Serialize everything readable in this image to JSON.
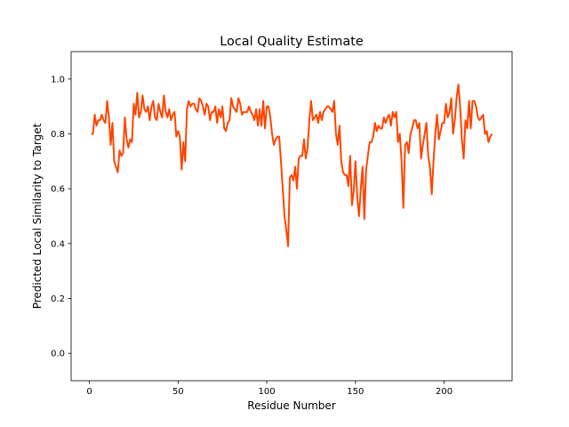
{
  "chart_data": {
    "type": "line",
    "title": "Local Quality Estimate",
    "x_label": "Residue Number",
    "y_label": "Predicted Local Similarity to Target",
    "color": "#ff4500",
    "x": [
      1,
      2,
      3,
      4,
      5,
      6,
      7,
      8,
      9,
      10,
      11,
      12,
      13,
      14,
      15,
      16,
      17,
      18,
      19,
      20,
      21,
      22,
      23,
      24,
      25,
      26,
      27,
      28,
      29,
      30,
      31,
      32,
      33,
      34,
      35,
      36,
      37,
      38,
      39,
      40,
      41,
      42,
      43,
      44,
      45,
      46,
      47,
      48,
      49,
      50,
      51,
      52,
      53,
      54,
      55,
      56,
      57,
      58,
      59,
      60,
      61,
      62,
      63,
      64,
      65,
      66,
      67,
      68,
      69,
      70,
      71,
      72,
      73,
      74,
      75,
      76,
      77,
      78,
      79,
      80,
      81,
      82,
      83,
      84,
      85,
      86,
      87,
      88,
      89,
      90,
      91,
      92,
      93,
      94,
      95,
      96,
      97,
      98,
      99,
      100,
      101,
      102,
      103,
      104,
      105,
      106,
      107,
      108,
      109,
      110,
      111,
      112,
      113,
      114,
      115,
      116,
      117,
      118,
      119,
      120,
      121,
      122,
      123,
      124,
      125,
      126,
      127,
      128,
      129,
      130,
      131,
      132,
      133,
      134,
      135,
      136,
      137,
      138,
      139,
      140,
      141,
      142,
      143,
      144,
      145,
      146,
      147,
      148,
      149,
      150,
      151,
      152,
      153,
      154,
      155,
      156,
      157,
      158,
      159,
      160,
      161,
      162,
      163,
      164,
      165,
      166,
      167,
      168,
      169,
      170,
      171,
      172,
      173,
      174,
      175,
      176,
      177,
      178,
      179,
      180,
      181,
      182,
      183,
      184,
      185,
      186,
      187,
      188,
      189,
      190,
      191,
      192,
      193,
      194,
      195,
      196,
      197,
      198,
      199,
      200,
      201,
      202,
      203,
      204,
      205,
      206,
      207,
      208,
      209,
      210,
      211,
      212,
      213,
      214,
      215,
      216,
      217,
      218,
      219,
      220,
      221,
      222,
      223,
      224,
      225,
      226,
      227
    ],
    "values": [
      0.8,
      0.8,
      0.87,
      0.83,
      0.85,
      0.85,
      0.87,
      0.85,
      0.84,
      0.92,
      0.86,
      0.76,
      0.84,
      0.7,
      0.68,
      0.66,
      0.74,
      0.72,
      0.73,
      0.86,
      0.78,
      0.75,
      0.78,
      0.77,
      0.91,
      0.87,
      0.95,
      0.86,
      0.88,
      0.94,
      0.89,
      0.88,
      0.9,
      0.85,
      0.9,
      0.92,
      0.86,
      0.85,
      0.91,
      0.88,
      0.86,
      0.94,
      0.88,
      0.86,
      0.89,
      0.85,
      0.87,
      0.88,
      0.79,
      0.81,
      0.79,
      0.67,
      0.77,
      0.7,
      0.89,
      0.92,
      0.9,
      0.91,
      0.91,
      0.89,
      0.88,
      0.93,
      0.92,
      0.9,
      0.87,
      0.91,
      0.9,
      0.85,
      0.88,
      0.88,
      0.9,
      0.84,
      0.89,
      0.86,
      0.9,
      0.82,
      0.81,
      0.84,
      0.85,
      0.93,
      0.9,
      0.89,
      0.88,
      0.93,
      0.91,
      0.87,
      0.88,
      0.88,
      0.88,
      0.9,
      0.88,
      0.87,
      0.85,
      0.89,
      0.83,
      0.89,
      0.83,
      0.92,
      0.82,
      0.9,
      0.9,
      0.86,
      0.8,
      0.76,
      0.78,
      0.79,
      0.79,
      0.7,
      0.6,
      0.5,
      0.45,
      0.39,
      0.64,
      0.65,
      0.63,
      0.68,
      0.6,
      0.71,
      0.72,
      0.72,
      0.78,
      0.71,
      0.75,
      0.85,
      0.92,
      0.85,
      0.86,
      0.87,
      0.84,
      0.88,
      0.85,
      0.88,
      0.89,
      0.9,
      0.9,
      0.89,
      0.88,
      0.92,
      0.8,
      0.76,
      0.83,
      0.7,
      0.66,
      0.65,
      0.65,
      0.61,
      0.72,
      0.54,
      0.59,
      0.7,
      0.57,
      0.5,
      0.6,
      0.68,
      0.49,
      0.67,
      0.72,
      0.77,
      0.77,
      0.79,
      0.84,
      0.81,
      0.83,
      0.82,
      0.82,
      0.86,
      0.84,
      0.86,
      0.87,
      0.83,
      0.88,
      0.86,
      0.88,
      0.77,
      0.8,
      0.7,
      0.53,
      0.76,
      0.77,
      0.73,
      0.8,
      0.82,
      0.85,
      0.85,
      0.82,
      0.84,
      0.71,
      0.76,
      0.8,
      0.84,
      0.72,
      0.68,
      0.58,
      0.7,
      0.8,
      0.87,
      0.78,
      0.81,
      0.84,
      0.84,
      0.91,
      0.86,
      0.88,
      0.93,
      0.8,
      0.85,
      0.93,
      0.98,
      0.9,
      0.78,
      0.71,
      0.85,
      0.82,
      0.92,
      0.82,
      0.92,
      0.92,
      0.9,
      0.86,
      0.85,
      0.86,
      0.87,
      0.8,
      0.81,
      0.77,
      0.79,
      0.8
    ],
    "xlim": [
      -10.3,
      238.3
    ],
    "ylim": [
      -0.1,
      1.1
    ],
    "xticks": [
      0,
      50,
      100,
      150,
      200
    ],
    "yticks": [
      {
        "value": 0,
        "label": "0.0"
      },
      0.2,
      0.4,
      0.6,
      0.8,
      {
        "value": 1,
        "label": "1.0"
      }
    ]
  }
}
